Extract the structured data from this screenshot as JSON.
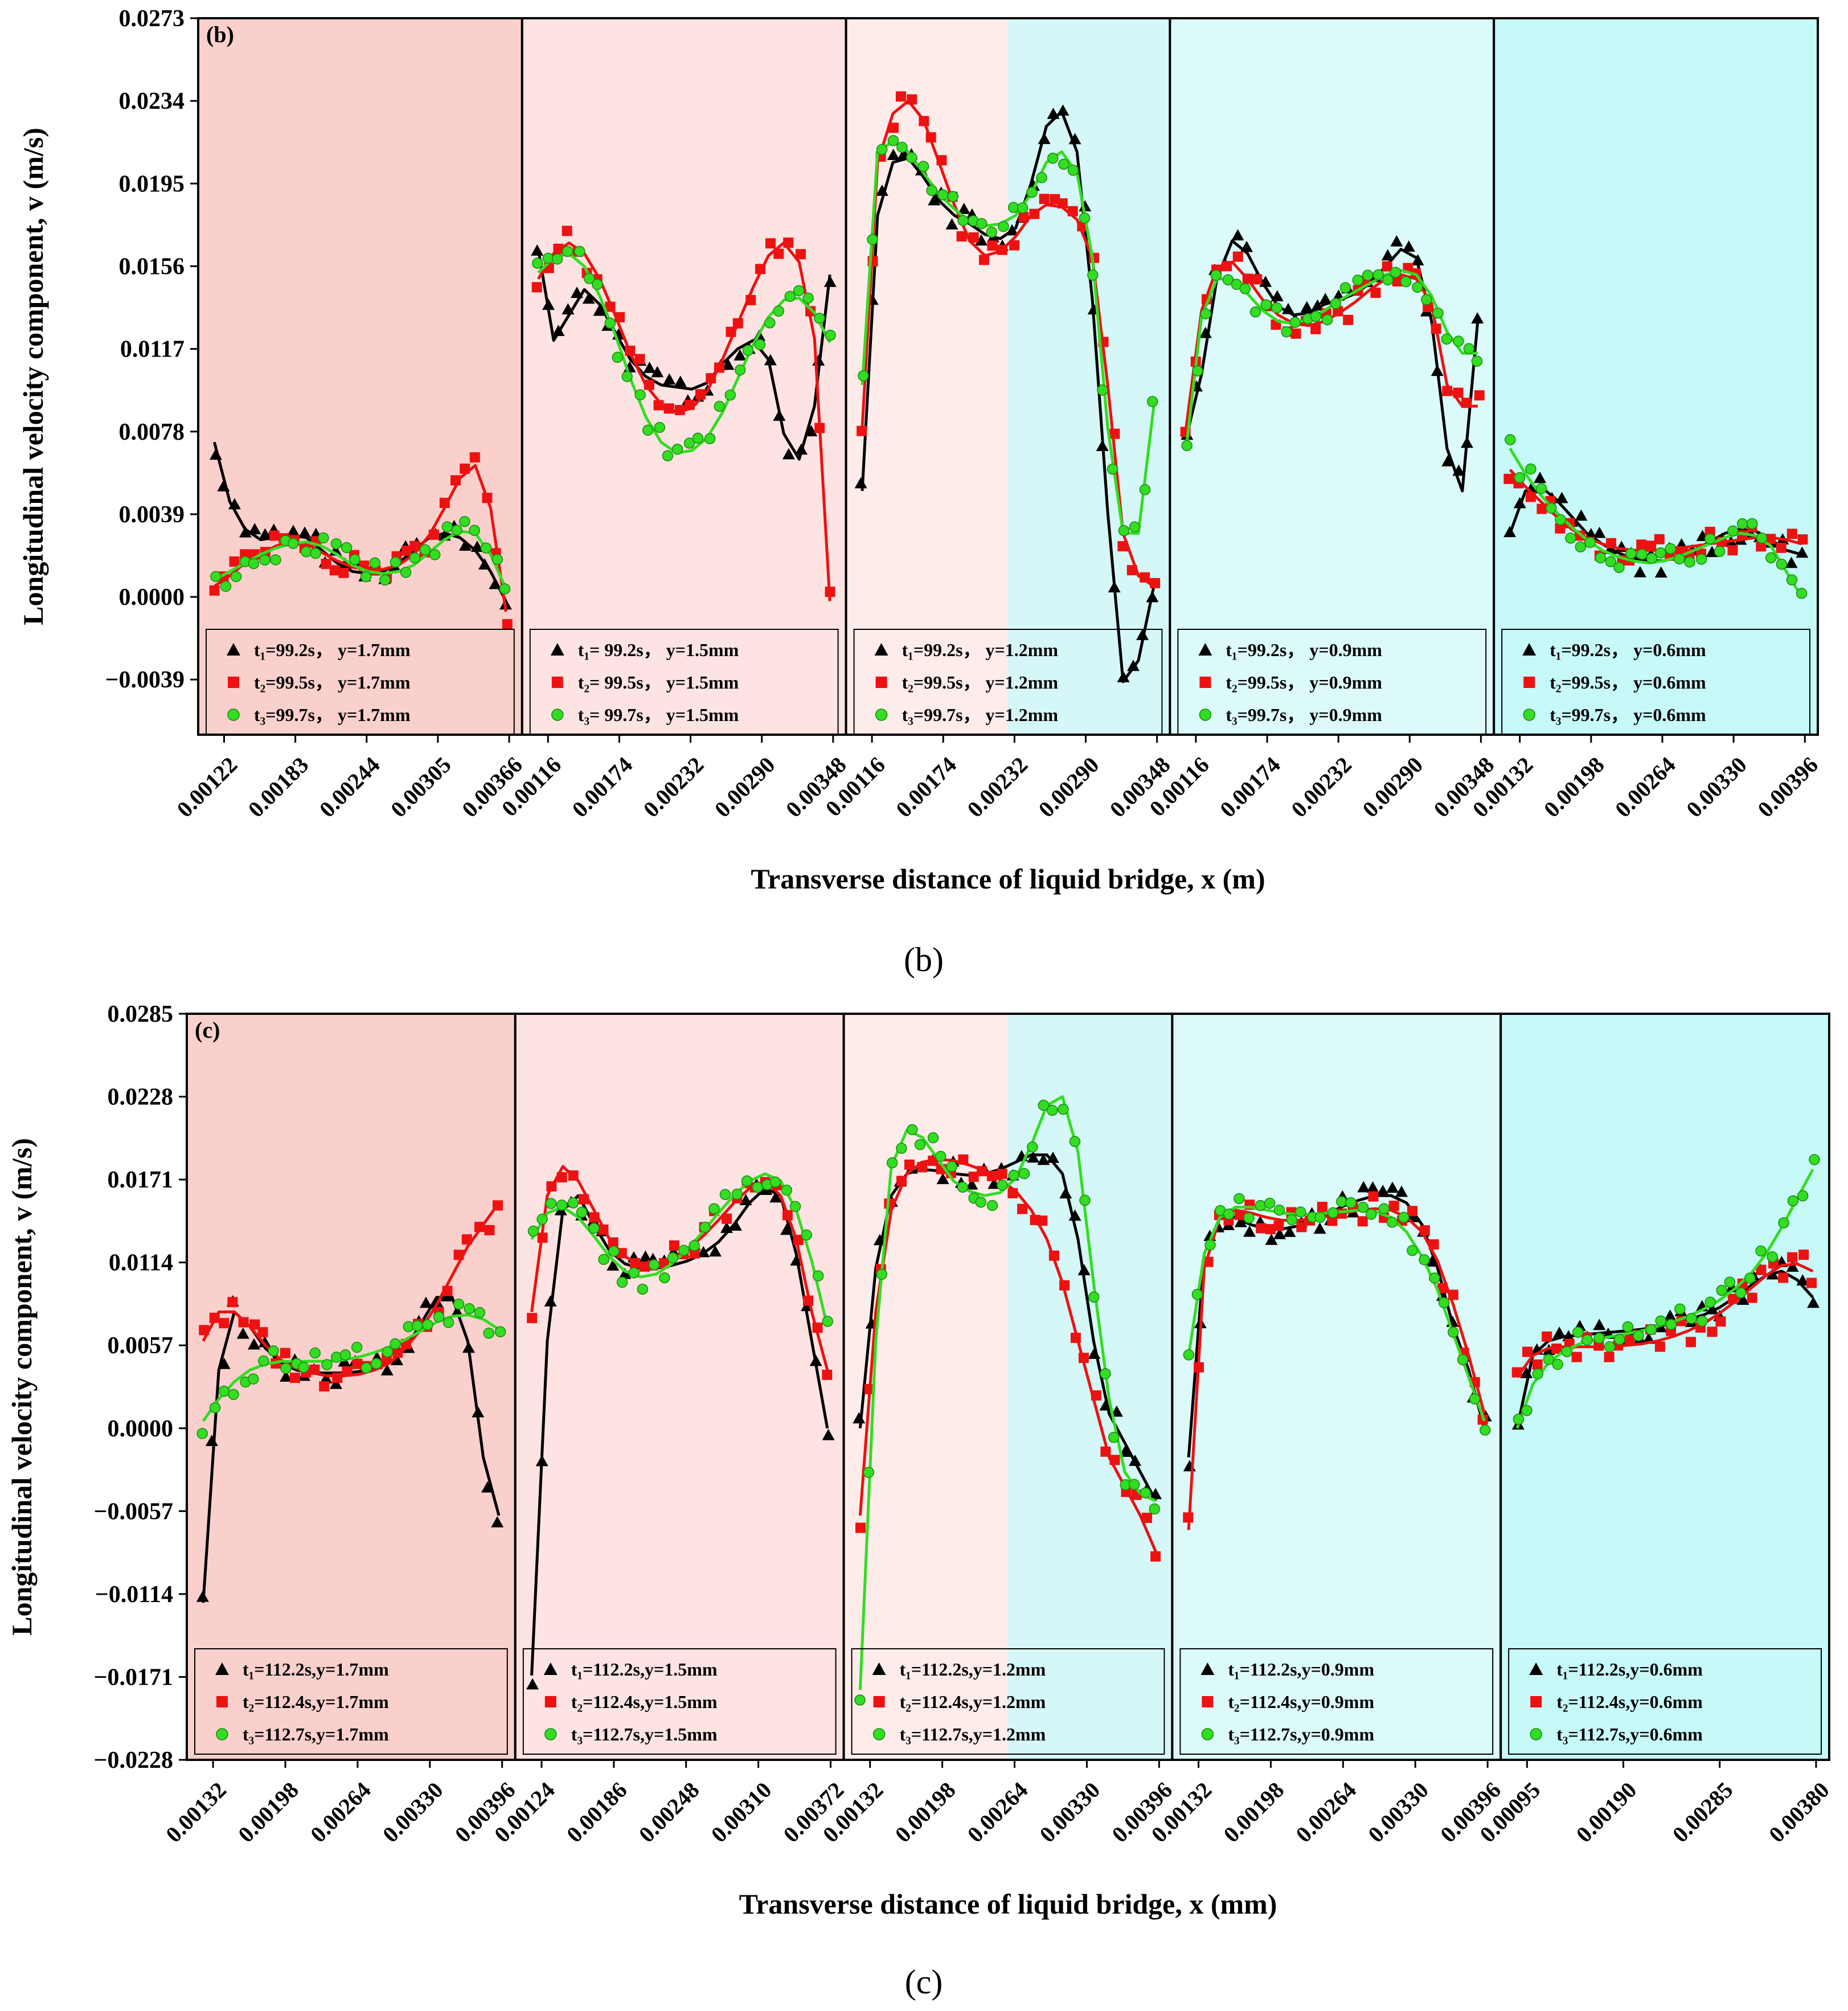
{
  "figure": {
    "caption_b": "(b)",
    "caption_c": "(c)",
    "colors": {
      "t1": "#000000",
      "t2": "#ee1111",
      "t3": "#33dd22"
    }
  },
  "chart_data": [
    {
      "type": "scatter",
      "id": "b",
      "panel_label": "(b)",
      "ylabel": "Longitudinal velocity component, v (m/s)",
      "xlabel": "Transverse distance of liquid bridge, x (m)",
      "ylim": [
        -0.0065,
        0.0273
      ],
      "yticks": [
        "0.0273",
        "0.0234",
        "0.0195",
        "0.0156",
        "0.0117",
        "0.0078",
        "0.0039",
        "0.0000",
        "−0.0039"
      ],
      "ytick_values": [
        0.0273,
        0.0234,
        0.0195,
        0.0156,
        0.0117,
        0.0078,
        0.0039,
        0.0,
        -0.0039
      ],
      "panels": [
        {
          "bg": [
            "#fad0cc"
          ],
          "xticks": [
            "0.00122",
            "0.00183",
            "0.00244",
            "0.00305",
            "0.00366"
          ],
          "legend": [
            "t₁=99.2s， y=1.7mm",
            "t₂=99.5s， y=1.7mm",
            "t₃=99.7s， y=1.7mm"
          ],
          "fits": [
            [
              0.0073,
              0.0045,
              0.0032,
              0.0027,
              0.0028,
              0.0029,
              0.0028,
              0.0022,
              0.0016,
              0.0012,
              0.0011,
              0.0012,
              0.0016,
              0.0022,
              0.0028,
              0.003,
              0.0028,
              0.0022,
              0.0012,
              -0.0002
            ],
            [
              0.0005,
              0.001,
              0.0016,
              0.002,
              0.0024,
              0.0026,
              0.0025,
              0.0021,
              0.0017,
              0.0014,
              0.0013,
              0.0013,
              0.0015,
              0.002,
              0.0029,
              0.0042,
              0.0056,
              0.0062,
              0.0042,
              -0.0007
            ],
            [
              0.0008,
              0.0012,
              0.0016,
              0.002,
              0.0023,
              0.0025,
              0.0026,
              0.0024,
              0.002,
              0.0015,
              0.0012,
              0.0011,
              0.0012,
              0.0015,
              0.0021,
              0.0027,
              0.0031,
              0.003,
              0.002,
              0.0004
            ]
          ]
        },
        {
          "bg": [
            "#fde4e2"
          ],
          "xticks": [
            "0.00116",
            "0.00174",
            "0.00232",
            "0.00290",
            "0.00348"
          ],
          "legend": [
            "t₁= 99.2s， y=1.5mm",
            "t₂= 99.5s， y=1.5mm",
            "t₃= 99.7s， y=1.5mm"
          ],
          "fits": [
            [
              0.0164,
              0.0121,
              0.0133,
              0.0145,
              0.0138,
              0.0125,
              0.0112,
              0.0104,
              0.01,
              0.0099,
              0.0098,
              0.0101,
              0.011,
              0.0117,
              0.0121,
              0.0112,
              0.0077,
              0.0065,
              0.009,
              0.0152
            ],
            [
              0.015,
              0.0162,
              0.0167,
              0.0162,
              0.015,
              0.0133,
              0.0115,
              0.01,
              0.0091,
              0.0087,
              0.0089,
              0.0097,
              0.0112,
              0.0129,
              0.0146,
              0.0161,
              0.0167,
              0.0158,
              0.0122,
              -0.0002
            ],
            [
              0.0153,
              0.016,
              0.0162,
              0.0156,
              0.0142,
              0.0124,
              0.0103,
              0.0085,
              0.0073,
              0.0068,
              0.0069,
              0.0075,
              0.0087,
              0.0103,
              0.0119,
              0.0132,
              0.014,
              0.0141,
              0.0134,
              0.012
            ]
          ]
        },
        {
          "bg": [
            "#fdecea",
            "#d6f7f7"
          ],
          "xticks": [
            "0.00116",
            "0.00174",
            "0.00232",
            "0.00290",
            "0.00348"
          ],
          "legend": [
            "t₁=99.2s， y=1.2mm",
            "t₂=99.5s， y=1.2mm",
            "t₃=99.7s， y=1.2mm"
          ],
          "fits": [
            [
              0.005,
              0.018,
              0.0205,
              0.0207,
              0.0198,
              0.0187,
              0.018,
              0.0176,
              0.0171,
              0.0169,
              0.0174,
              0.0195,
              0.0222,
              0.0229,
              0.021,
              0.014,
              0.004,
              -0.004,
              -0.003,
              0.0005
            ],
            [
              0.008,
              0.0205,
              0.0228,
              0.0234,
              0.0225,
              0.0205,
              0.0185,
              0.0168,
              0.0161,
              0.0163,
              0.017,
              0.018,
              0.0185,
              0.0184,
              0.0178,
              0.016,
              0.01,
              0.003,
              0.001,
              0.0005
            ],
            [
              0.01,
              0.021,
              0.0215,
              0.021,
              0.02,
              0.019,
              0.0183,
              0.0177,
              0.0175,
              0.0176,
              0.018,
              0.019,
              0.0205,
              0.021,
              0.02,
              0.016,
              0.008,
              0.003,
              0.003,
              0.009
            ]
          ]
        },
        {
          "bg": [
            "#dcfafa"
          ],
          "xticks": [
            "0.00116",
            "0.00174",
            "0.00232",
            "0.00290",
            "0.00348"
          ],
          "legend": [
            "t₁=99.2s， y=0.9mm",
            "t₂=99.5s， y=0.9mm",
            "t₃=99.7s， y=0.9mm"
          ],
          "fits": [
            [
              0.0075,
              0.0105,
              0.015,
              0.0168,
              0.0162,
              0.0148,
              0.0137,
              0.0133,
              0.0134,
              0.0138,
              0.014,
              0.0143,
              0.0148,
              0.0156,
              0.0164,
              0.016,
              0.013,
              0.007,
              0.005,
              0.013
            ],
            [
              0.008,
              0.0135,
              0.0155,
              0.0158,
              0.015,
              0.014,
              0.0133,
              0.0129,
              0.0128,
              0.013,
              0.0134,
              0.0139,
              0.0145,
              0.015,
              0.0152,
              0.015,
              0.0138,
              0.01,
              0.009,
              0.009
            ],
            [
              0.007,
              0.0132,
              0.015,
              0.015,
              0.0143,
              0.0135,
              0.013,
              0.0129,
              0.0131,
              0.0135,
              0.014,
              0.0144,
              0.0148,
              0.0152,
              0.0154,
              0.0152,
              0.0142,
              0.0125,
              0.0115,
              0.0115
            ]
          ]
        },
        {
          "bg": [
            "#c7f9f9"
          ],
          "xticks": [
            "0.00132",
            "0.00198",
            "0.00264",
            "0.00330",
            "0.00396"
          ],
          "legend": [
            "t₁=99.2s， y=0.6mm",
            "t₂=99.5s， y=0.6mm",
            "t₃=99.7s， y=0.6mm"
          ],
          "fits": [
            [
              0.003,
              0.005,
              0.0052,
              0.0046,
              0.0038,
              0.003,
              0.0025,
              0.0021,
              0.0018,
              0.0017,
              0.0017,
              0.0019,
              0.0022,
              0.0026,
              0.003,
              0.0032,
              0.0031,
              0.0027,
              0.0022,
              0.002
            ],
            [
              0.006,
              0.0052,
              0.0045,
              0.0038,
              0.0032,
              0.0028,
              0.0025,
              0.0023,
              0.0022,
              0.0022,
              0.0022,
              0.0023,
              0.0024,
              0.0025,
              0.0026,
              0.0027,
              0.0028,
              0.0028,
              0.0027,
              0.0025
            ],
            [
              0.007,
              0.0058,
              0.0048,
              0.004,
              0.0033,
              0.0027,
              0.0022,
              0.0019,
              0.0017,
              0.0016,
              0.0017,
              0.0019,
              0.0022,
              0.0025,
              0.0028,
              0.003,
              0.0029,
              0.0024,
              0.0012,
              0.0
            ]
          ]
        }
      ]
    },
    {
      "type": "scatter",
      "id": "c",
      "panel_label": "(c)",
      "ylabel": "Longitudinal velocity component, v (m/s)",
      "xlabel": "Transverse distance of liquid bridge, x (mm)",
      "ylim": [
        -0.0228,
        0.0285
      ],
      "yticks": [
        "0.0285",
        "0.0228",
        "0.0171",
        "0.0114",
        "0.0057",
        "0.0000",
        "−0.0057",
        "−0.0114",
        "−0.0171",
        "−0.0228"
      ],
      "ytick_values": [
        0.0285,
        0.0228,
        0.0171,
        0.0114,
        0.0057,
        0.0,
        -0.0057,
        -0.0114,
        -0.0171,
        -0.0228
      ],
      "panels": [
        {
          "bg": [
            "#fad0cc"
          ],
          "xticks": [
            "0.00132",
            "0.00198",
            "0.00264",
            "0.00330",
            "0.00396"
          ],
          "legend": [
            "t₁=112.2s,y=1.7mm",
            "t₂=112.4s,y=1.7mm",
            "t₃=112.7s,y=1.7mm"
          ],
          "fits": [
            [
              -0.012,
              0.004,
              0.008,
              0.007,
              0.0055,
              0.0045,
              0.004,
              0.0038,
              0.0038,
              0.0038,
              0.0039,
              0.0041,
              0.0045,
              0.0055,
              0.0072,
              0.009,
              0.009,
              0.006,
              -0.002,
              -0.006
            ],
            [
              0.006,
              0.008,
              0.008,
              0.007,
              0.0057,
              0.0047,
              0.0041,
              0.0038,
              0.0036,
              0.0036,
              0.0037,
              0.004,
              0.0045,
              0.0055,
              0.0068,
              0.0085,
              0.0105,
              0.0125,
              0.014,
              0.0155
            ],
            [
              0.0005,
              0.002,
              0.0032,
              0.004,
              0.0044,
              0.0046,
              0.0046,
              0.0046,
              0.0046,
              0.0047,
              0.0049,
              0.0052,
              0.0056,
              0.0061,
              0.0067,
              0.0073,
              0.0077,
              0.0078,
              0.0075,
              0.0068
            ]
          ]
        },
        {
          "bg": [
            "#fde4e2"
          ],
          "xticks": [
            "0.00124",
            "0.00186",
            "0.00248",
            "0.00310",
            "0.00372"
          ],
          "legend": [
            "t₁=112.2s,y=1.5mm",
            "t₂=112.4s,y=1.5mm",
            "t₃=112.7s,y=1.5mm"
          ],
          "fits": [
            [
              -0.017,
              0.006,
              0.015,
              0.016,
              0.014,
              0.0122,
              0.0113,
              0.011,
              0.011,
              0.0112,
              0.0115,
              0.012,
              0.0128,
              0.014,
              0.0155,
              0.0165,
              0.016,
              0.012,
              0.006,
              0.0
            ],
            [
              0.008,
              0.016,
              0.018,
              0.017,
              0.015,
              0.013,
              0.0118,
              0.0112,
              0.0112,
              0.0116,
              0.0123,
              0.0132,
              0.0143,
              0.0155,
              0.0165,
              0.017,
              0.016,
              0.013,
              0.008,
              0.004
            ],
            [
              0.013,
              0.0148,
              0.0152,
              0.0145,
              0.0132,
              0.0118,
              0.0108,
              0.0104,
              0.0106,
              0.0113,
              0.0123,
              0.0135,
              0.0148,
              0.016,
              0.017,
              0.0175,
              0.017,
              0.015,
              0.0115,
              0.007
            ]
          ]
        },
        {
          "bg": [
            "#fdecea",
            "#d6f7f7"
          ],
          "xticks": [
            "0.00132",
            "0.00198",
            "0.00264",
            "0.00330",
            "0.00396"
          ],
          "legend": [
            "t₁=112.2s,y=1.2mm",
            "t₂=112.4s,y=1.2mm",
            "t₃=112.7s,y=1.2mm"
          ],
          "fits": [
            [
              0.0,
              0.011,
              0.016,
              0.0175,
              0.0178,
              0.0177,
              0.0175,
              0.0174,
              0.0175,
              0.0178,
              0.0183,
              0.0188,
              0.0188,
              0.0175,
              0.013,
              0.006,
              0.001,
              -0.001,
              -0.003,
              -0.005
            ],
            [
              -0.006,
              0.008,
              0.015,
              0.0175,
              0.0183,
              0.0185,
              0.0184,
              0.0181,
              0.0177,
              0.0171,
              0.0163,
              0.015,
              0.013,
              0.01,
              0.006,
              0.002,
              -0.002,
              -0.004,
              -0.006,
              -0.0085
            ],
            [
              -0.018,
              0.006,
              0.018,
              0.0205,
              0.02,
              0.0185,
              0.017,
              0.0163,
              0.016,
              0.0162,
              0.0172,
              0.0195,
              0.0222,
              0.0228,
              0.019,
              0.01,
              0.002,
              -0.003,
              -0.0045,
              -0.005
            ]
          ]
        },
        {
          "bg": [
            "#dcfafa"
          ],
          "xticks": [
            "0.00132",
            "0.00198",
            "0.00264",
            "0.00330",
            "0.00396"
          ],
          "legend": [
            "t₁=112.2s,y=0.9mm",
            "t₂=112.4s,y=0.9mm",
            "t₃=112.7s,y=0.9mm"
          ],
          "fits": [
            [
              -0.002,
              0.012,
              0.0145,
              0.0145,
              0.014,
              0.0137,
              0.0137,
              0.0139,
              0.0143,
              0.0148,
              0.0153,
              0.0157,
              0.016,
              0.016,
              0.0155,
              0.014,
              0.011,
              0.007,
              0.004,
              0.0
            ],
            [
              -0.007,
              0.011,
              0.0145,
              0.015,
              0.0148,
              0.0145,
              0.0143,
              0.0143,
              0.0144,
              0.0146,
              0.0148,
              0.015,
              0.0151,
              0.015,
              0.0145,
              0.0135,
              0.0115,
              0.0085,
              0.005,
              0.001
            ],
            [
              0.005,
              0.012,
              0.0145,
              0.0152,
              0.0152,
              0.015,
              0.0148,
              0.0147,
              0.0147,
              0.0148,
              0.0149,
              0.015,
              0.0149,
              0.0145,
              0.0135,
              0.0118,
              0.0095,
              0.0065,
              0.0035,
              0.0005
            ]
          ]
        },
        {
          "bg": [
            "#c7f9f9"
          ],
          "xticks": [
            "0.00095",
            "0.00190",
            "0.00285",
            "0.00380"
          ],
          "legend": [
            "t₁=112.2s,y=0.6mm",
            "t₂=112.4s,y=0.6mm",
            "t₃=112.7s,y=0.6mm"
          ],
          "fits": [
            [
              0.0,
              0.005,
              0.006,
              0.0063,
              0.0064,
              0.0065,
              0.0066,
              0.0067,
              0.0068,
              0.007,
              0.0072,
              0.0075,
              0.0078,
              0.0083,
              0.009,
              0.0098,
              0.0105,
              0.0108,
              0.0102,
              0.009
            ],
            [
              0.0035,
              0.005,
              0.0055,
              0.0056,
              0.0056,
              0.0056,
              0.0056,
              0.0057,
              0.0058,
              0.006,
              0.0063,
              0.0067,
              0.0072,
              0.0079,
              0.0087,
              0.0096,
              0.0105,
              0.0112,
              0.0113,
              0.0108
            ],
            [
              0.0,
              0.003,
              0.0045,
              0.0053,
              0.0058,
              0.0061,
              0.0063,
              0.0065,
              0.0067,
              0.007,
              0.0073,
              0.0077,
              0.0082,
              0.0088,
              0.0096,
              0.0106,
              0.012,
              0.0138,
              0.0158,
              0.0178
            ]
          ]
        }
      ]
    }
  ]
}
